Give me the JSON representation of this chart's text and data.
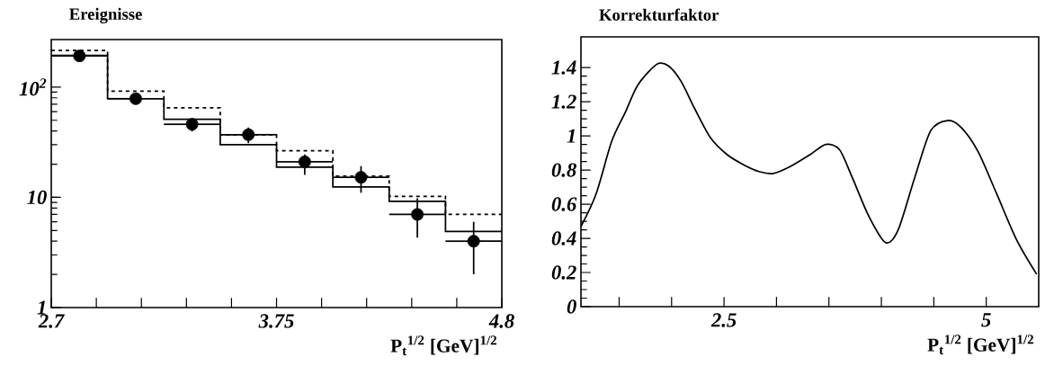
{
  "chart_data": [
    {
      "type": "histogram",
      "title": "Ereignisse",
      "xlabel": "P$_{t}$$^{1/2}$ [GeV]$^{1/2}$",
      "log": "y",
      "bins": [
        2.7,
        2.9625,
        3.225,
        3.4875,
        3.75,
        4.0125,
        4.275,
        4.5375,
        4.8
      ],
      "xlim": [
        2.7,
        4.8
      ],
      "ylim": [
        1,
        270
      ],
      "xticks": [
        2.7,
        {
          "value": 2.91,
          "label": null
        },
        {
          "value": 3.12,
          "label": null
        },
        {
          "value": 3.33,
          "label": null
        },
        {
          "value": 3.54,
          "label": null
        },
        3.75,
        {
          "value": 3.96,
          "label": null
        },
        {
          "value": 4.17,
          "label": null
        },
        {
          "value": 4.38,
          "label": null
        },
        {
          "value": 4.59,
          "label": null
        },
        4.8
      ],
      "yticks": [
        1,
        10,
        {
          "value": 100,
          "label": "10$^{2}$"
        }
      ],
      "series": [
        {
          "type": "histogram",
          "color": "#000000",
          "line_style": "solid",
          "values": [
            194,
            78.5,
            51,
            30,
            18.8,
            12.4,
            9.2,
            4.9
          ]
        },
        {
          "type": "histogram",
          "color": "#000000",
          "line_style": "dashed",
          "values": [
            215,
            92,
            65,
            37,
            26.5,
            15.6,
            10.2,
            7.0
          ]
        },
        {
          "type": "scatter",
          "color": "#000000",
          "marker": "circle",
          "x": [
            2.83125,
            3.09375,
            3.35625,
            3.61875,
            3.88125,
            4.14375,
            4.40625,
            4.66875
          ],
          "values": [
            192,
            78.5,
            46,
            37,
            21,
            15.2,
            7.0,
            4.0
          ],
          "errors": [
            [
              179,
              205
            ],
            [
              72,
              86
            ],
            [
              39.6,
              52
            ],
            [
              31,
              43
            ],
            [
              16,
              24.5
            ],
            [
              11,
              19.2
            ],
            [
              4.3,
              9.8
            ],
            [
              2.0,
              6.0
            ]
          ],
          "xerrors": [
            0.13125,
            0.13125,
            0.13125,
            0.13125,
            0.13125,
            0.13125,
            0.13125,
            0.13125
          ]
        }
      ]
    },
    {
      "type": "line",
      "title": "Korrekturfaktor",
      "xlabel": "P$_{t}$$^{1/2}$ [GeV]$^{1/2}$",
      "color": "#000000",
      "x": [
        1.136,
        1.28,
        1.43,
        1.56,
        1.68,
        1.86,
        1.97,
        2.09,
        2.22,
        2.37,
        2.53,
        2.69,
        2.84,
        2.97,
        3.13,
        3.32,
        3.47,
        3.6,
        3.72,
        3.88,
        4.04,
        4.16,
        4.32,
        4.47,
        4.63,
        4.76,
        4.92,
        5.1,
        5.29,
        5.48
      ],
      "values": [
        0.47,
        0.66,
        0.97,
        1.14,
        1.3,
        1.42,
        1.41,
        1.32,
        1.16,
        0.99,
        0.89,
        0.83,
        0.79,
        0.78,
        0.82,
        0.89,
        0.95,
        0.92,
        0.76,
        0.53,
        0.375,
        0.45,
        0.76,
        1.03,
        1.09,
        1.05,
        0.91,
        0.66,
        0.39,
        0.19
      ],
      "xlim": [
        1.136,
        5.5
      ],
      "ylim": [
        0,
        1.58
      ],
      "xticks": [
        {
          "value": 1.5,
          "label": null
        },
        {
          "value": 2,
          "label": null
        },
        2.5,
        {
          "value": 3,
          "label": null
        },
        {
          "value": 3.5,
          "label": null
        },
        {
          "value": 4,
          "label": null
        },
        {
          "value": 4.5,
          "label": null
        },
        5
      ],
      "yticks": [
        0,
        0.2,
        0.4,
        0.6,
        0.8,
        1,
        1.2,
        1.4
      ]
    }
  ]
}
